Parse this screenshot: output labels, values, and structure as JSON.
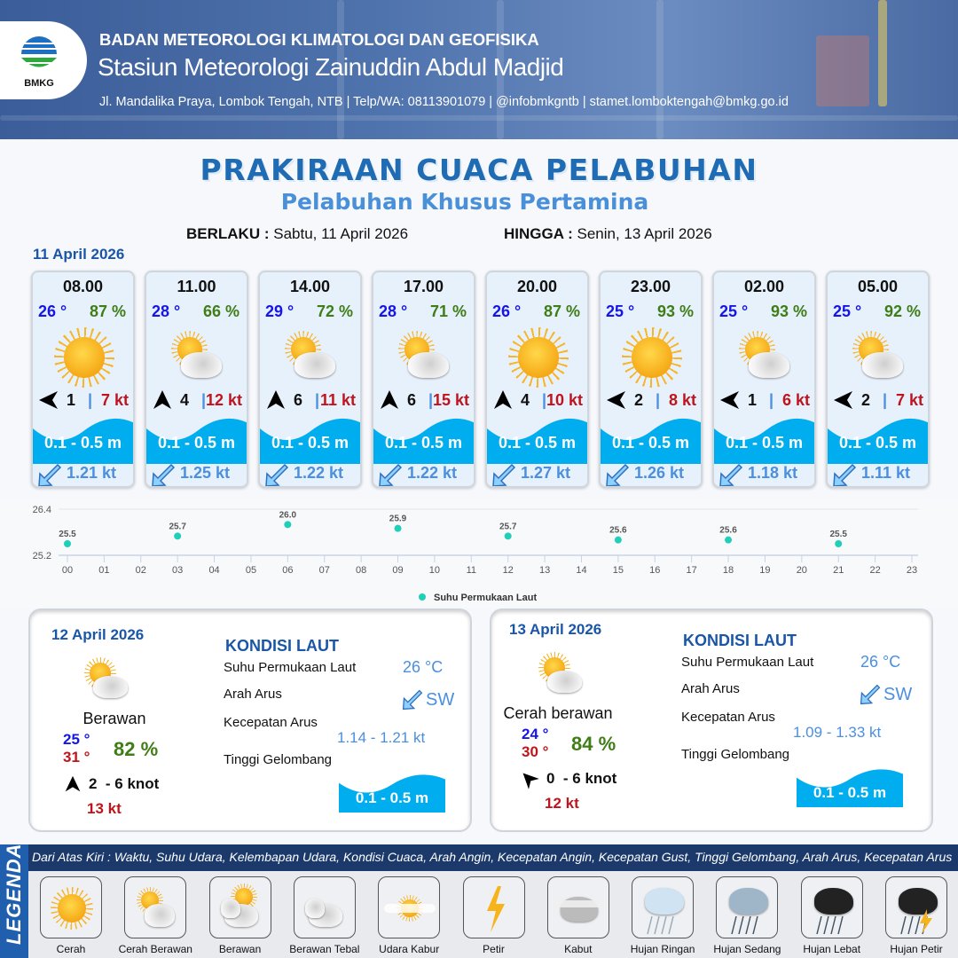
{
  "header": {
    "org": "BADAN METEOROLOGI KLIMATOLOGI DAN GEOFISIKA",
    "station": "Stasiun Meteorologi Zainuddin Abdul Madjid",
    "contact": "Jl. Mandalika Praya, Lombok Tengah, NTB | Telp/WA: 08113901079 | @infobmkgntb | stamet.lomboktengah@bmkg.go.id",
    "logo_text": "BMKG"
  },
  "title": "PRAKIRAAN CUACA PELABUHAN",
  "subtitle": "Pelabuhan Khusus Pertamina",
  "validity": {
    "from_label": "BERLAKU :",
    "from": "Sabtu, 11 April 2026",
    "to_label": "HINGGA :",
    "to": "Senin, 13 April 2026"
  },
  "day1": {
    "date": "11 April 2026",
    "forecasts": [
      {
        "time": "08.00",
        "temp": "26 °",
        "hum": "87 %",
        "weather": "cerah",
        "wind_dir": "W",
        "wind": "1",
        "gust": "7 kt",
        "wave": "0.1 - 0.5 m",
        "current_dir": "SW",
        "current": "1.21 kt"
      },
      {
        "time": "11.00",
        "temp": "28 °",
        "hum": "66 %",
        "weather": "cerah-berawan",
        "wind_dir": "N",
        "wind": "4",
        "gust": "12 kt",
        "wave": "0.1 - 0.5 m",
        "current_dir": "SW",
        "current": "1.25 kt"
      },
      {
        "time": "14.00",
        "temp": "29 °",
        "hum": "72 %",
        "weather": "cerah-berawan",
        "wind_dir": "N",
        "wind": "6",
        "gust": "11 kt",
        "wave": "0.1 - 0.5 m",
        "current_dir": "SW",
        "current": "1.22 kt"
      },
      {
        "time": "17.00",
        "temp": "28 °",
        "hum": "71 %",
        "weather": "cerah-berawan",
        "wind_dir": "N",
        "wind": "6",
        "gust": "15 kt",
        "wave": "0.1 - 0.5 m",
        "current_dir": "SW",
        "current": "1.22 kt"
      },
      {
        "time": "20.00",
        "temp": "26 °",
        "hum": "87 %",
        "weather": "cerah",
        "wind_dir": "N",
        "wind": "4",
        "gust": "10 kt",
        "wave": "0.1 - 0.5 m",
        "current_dir": "SW",
        "current": "1.27 kt"
      },
      {
        "time": "23.00",
        "temp": "25 °",
        "hum": "93 %",
        "weather": "cerah",
        "wind_dir": "W",
        "wind": "2",
        "gust": "8 kt",
        "wave": "0.1 - 0.5 m",
        "current_dir": "SW",
        "current": "1.26 kt"
      },
      {
        "time": "02.00",
        "temp": "25 °",
        "hum": "93 %",
        "weather": "cerah-berawan",
        "wind_dir": "W",
        "wind": "1",
        "gust": "6 kt",
        "wave": "0.1 - 0.5 m",
        "current_dir": "SW",
        "current": "1.18 kt"
      },
      {
        "time": "05.00",
        "temp": "25 °",
        "hum": "92 %",
        "weather": "cerah-berawan",
        "wind_dir": "W",
        "wind": "2",
        "gust": "7 kt",
        "wave": "0.1 - 0.5 m",
        "current_dir": "SW",
        "current": "1.11 kt"
      }
    ]
  },
  "chart_data": {
    "type": "scatter",
    "title": "",
    "xlabel": "",
    "ylabel": "",
    "categories": [
      "00",
      "01",
      "02",
      "03",
      "04",
      "05",
      "06",
      "07",
      "08",
      "09",
      "10",
      "11",
      "12",
      "13",
      "14",
      "15",
      "16",
      "17",
      "18",
      "19",
      "20",
      "21",
      "22",
      "23"
    ],
    "ylim": [
      25.2,
      26.4
    ],
    "yticks": [
      "25.2",
      "26.4"
    ],
    "grid": true,
    "legend": "bottom",
    "series": [
      {
        "name": "Suhu Permukaan Laut",
        "color": "#1fcfb8",
        "points": [
          {
            "x": "00",
            "y": 25.5
          },
          {
            "x": "03",
            "y": 25.7
          },
          {
            "x": "06",
            "y": 26.0
          },
          {
            "x": "09",
            "y": 25.9
          },
          {
            "x": "12",
            "y": 25.7
          },
          {
            "x": "15",
            "y": 25.6
          },
          {
            "x": "18",
            "y": 25.6
          },
          {
            "x": "21",
            "y": 25.5
          }
        ]
      }
    ]
  },
  "panels": [
    {
      "date": "12 April 2026",
      "weather": "cerah-berawan",
      "condition": "Berawan",
      "tmin": "25 °",
      "tmax": "31 °",
      "hum": "82 %",
      "wind_dir": "N",
      "wind": "2  - 6 knot",
      "gust": "13 kt",
      "sea_title": "KONDISI LAUT",
      "sst_label": "Suhu Permukaan Laut",
      "sst": "26 °C",
      "dir_label": "Arah Arus",
      "dir": "SW",
      "speed_label": "Kecepatan Arus",
      "speed": "1.14 - 1.21 kt",
      "wave_label": "Tinggi Gelombang",
      "wave": "0.1 - 0.5 m"
    },
    {
      "date": "13 April 2026",
      "weather": "cerah-berawan",
      "condition": "Cerah berawan",
      "tmin": "24 °",
      "tmax": "30 °",
      "hum": "84 %",
      "wind_dir": "NW",
      "wind": "0  - 6 knot",
      "gust": "12 kt",
      "sea_title": "KONDISI LAUT",
      "sst_label": "Suhu Permukaan Laut",
      "sst": "26 °C",
      "dir_label": "Arah Arus",
      "dir": "SW",
      "speed_label": "Kecepatan Arus",
      "speed": "1.09 - 1.33 kt",
      "wave_label": "Tinggi Gelombang",
      "wave": "0.1 - 0.5 m"
    }
  ],
  "legend": {
    "side": "LEGENDA",
    "description": "Dari Atas Kiri : Waktu, Suhu Udara, Kelembapan Udara, Kondisi Cuaca, Arah Angin, Kecepatan Angin, Kecepatan Gust, Tinggi Gelombang, Arah Arus, Kecepatan Arus",
    "items": [
      "Cerah",
      "Cerah Berawan",
      "Berawan",
      "Berawan Tebal",
      "Udara Kabur",
      "Petir",
      "Kabut",
      "Hujan Ringan",
      "Hujan Sedang",
      "Hujan Lebat",
      "Hujan Petir"
    ]
  },
  "colors": {
    "temp": "#1515e8",
    "humidity": "#3f7d17",
    "gust": "#c0141c",
    "wave": "#00aef0",
    "current": "#4a8fe0",
    "title": "#1f6cb5"
  }
}
